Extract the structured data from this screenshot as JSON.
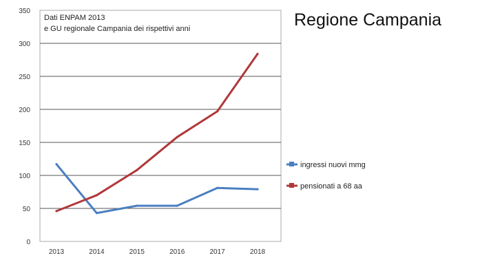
{
  "chart_data": {
    "type": "line",
    "title": "Regione Campania",
    "note_lines": [
      "Dati ENPAM 2013",
      "e GU regionale Campania dei rispettivi anni"
    ],
    "x": [
      "2013",
      "2014",
      "2015",
      "2016",
      "2017",
      "2018"
    ],
    "yticks": [
      "0",
      "50",
      "100",
      "150",
      "200",
      "250",
      "300",
      "350"
    ],
    "ylim": [
      0,
      350
    ],
    "grid": true,
    "legend_position": "right",
    "series": [
      {
        "name": "ingressi nuovi mmg",
        "values": [
          117,
          43,
          54,
          54,
          81,
          79
        ],
        "color": "#4a7fc1"
      },
      {
        "name": "pensionati a 68 aa",
        "values": [
          46,
          70,
          108,
          158,
          197,
          284
        ],
        "color": "#b0373a"
      }
    ]
  }
}
